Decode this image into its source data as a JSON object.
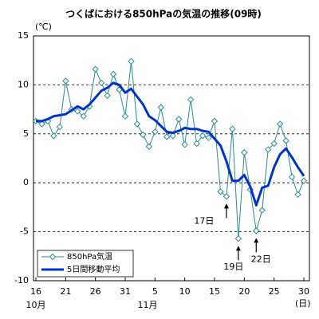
{
  "chart_data": {
    "type": "line",
    "title": "つくばにおける850hPaの気温の推移(09時)",
    "y_unit_label": "(℃)",
    "x_unit_label": "(日)",
    "categories": [
      "16",
      null,
      null,
      null,
      null,
      "21",
      null,
      null,
      null,
      null,
      "26",
      null,
      null,
      null,
      null,
      "31",
      null,
      null,
      null,
      null,
      "5",
      null,
      null,
      null,
      null,
      "10",
      null,
      null,
      null,
      null,
      "15",
      null,
      null,
      null,
      null,
      "20",
      null,
      null,
      null,
      null,
      "25",
      null,
      null,
      null,
      null,
      "30"
    ],
    "month_labels": [
      {
        "value": 0,
        "label": "10月"
      },
      {
        "value": 16,
        "label": "11月"
      }
    ],
    "series": [
      {
        "name": "850hPa気温",
        "color": "#2a8c8c",
        "markers": true,
        "values": [
          6.3,
          6.0,
          6.3,
          4.8,
          5.7,
          10.4,
          7.5,
          7.3,
          6.8,
          7.8,
          11.6,
          10.2,
          8.9,
          11.1,
          9.5,
          6.8,
          12.4,
          6.0,
          4.9,
          3.7,
          5.2,
          7.7,
          4.7,
          4.8,
          6.5,
          3.9,
          8.5,
          4.0,
          4.8,
          4.6,
          6.3,
          -0.9,
          -1.4,
          5.5,
          -5.7,
          3.1,
          -0.7,
          -4.9,
          -2.8,
          3.4,
          4.0,
          6.0,
          4.3,
          0.6,
          -1.2,
          0.2
        ]
      },
      {
        "name": "5日間移動平均",
        "color": "#0033cc",
        "markers": false,
        "values": [
          6.3,
          6.3,
          6.5,
          6.8,
          6.9,
          7.0,
          7.4,
          7.8,
          7.5,
          8.0,
          8.7,
          9.4,
          9.7,
          10.2,
          10.0,
          9.2,
          9.6,
          8.8,
          8.0,
          6.8,
          6.4,
          5.8,
          5.2,
          5.1,
          5.3,
          5.6,
          5.5,
          5.5,
          5.3,
          5.2,
          4.5,
          3.8,
          2.2,
          0.2,
          0.2,
          0.8,
          -0.4,
          -2.3,
          -0.5,
          -0.3,
          1.6,
          2.9,
          3.5,
          2.6,
          1.6,
          0.7
        ]
      }
    ],
    "annotations": [
      {
        "text": "17日",
        "index": 32
      },
      {
        "text": "19日",
        "index": 34
      },
      {
        "text": "22日",
        "index": 37
      }
    ],
    "ylim": [
      -10,
      15
    ],
    "yticks": [
      -10,
      -5,
      0,
      5,
      10,
      15
    ],
    "grid": true
  }
}
